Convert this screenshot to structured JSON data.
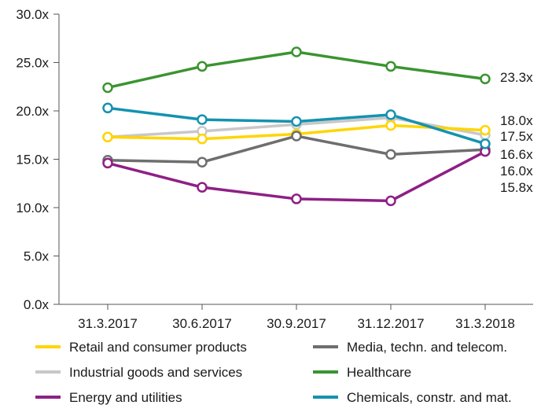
{
  "chart_data": {
    "type": "line",
    "title": "",
    "xlabel": "",
    "ylabel": "",
    "categories": [
      "31.3.2017",
      "30.6.2017",
      "30.9.2017",
      "31.12.2017",
      "31.3.2018"
    ],
    "ylim": [
      0,
      30
    ],
    "yticks": [
      0,
      5,
      10,
      15,
      20,
      25,
      30
    ],
    "ytick_labels": [
      "0.0x",
      "5.0x",
      "10.0x",
      "15.0x",
      "20.0x",
      "25.0x",
      "30.0x"
    ],
    "grid": false,
    "legend_position": "bottom",
    "series": [
      {
        "name": "Retail and consumer products",
        "color": "#ffd500",
        "values": [
          17.3,
          17.1,
          17.6,
          18.5,
          18.0
        ]
      },
      {
        "name": "Industrial goods and services",
        "color": "#c8c8c8",
        "values": [
          17.3,
          17.9,
          18.6,
          19.3,
          17.5
        ]
      },
      {
        "name": "Energy and utilities",
        "color": "#8f1f85",
        "values": [
          14.6,
          12.1,
          10.9,
          10.7,
          15.8
        ]
      },
      {
        "name": "Media, techn. and telecom.",
        "color": "#6e6e6e",
        "values": [
          14.9,
          14.7,
          17.4,
          15.5,
          16.0
        ]
      },
      {
        "name": "Healthcare",
        "color": "#3a9431",
        "values": [
          22.4,
          24.6,
          26.1,
          24.6,
          23.3
        ]
      },
      {
        "name": "Chemicals, constr. and mat.",
        "color": "#1592b0",
        "values": [
          20.3,
          19.1,
          18.9,
          19.6,
          16.6
        ]
      }
    ],
    "end_labels": [
      "23.3x",
      "18.0x",
      "17.5x",
      "16.6x",
      "16.0x",
      "15.8x"
    ]
  }
}
